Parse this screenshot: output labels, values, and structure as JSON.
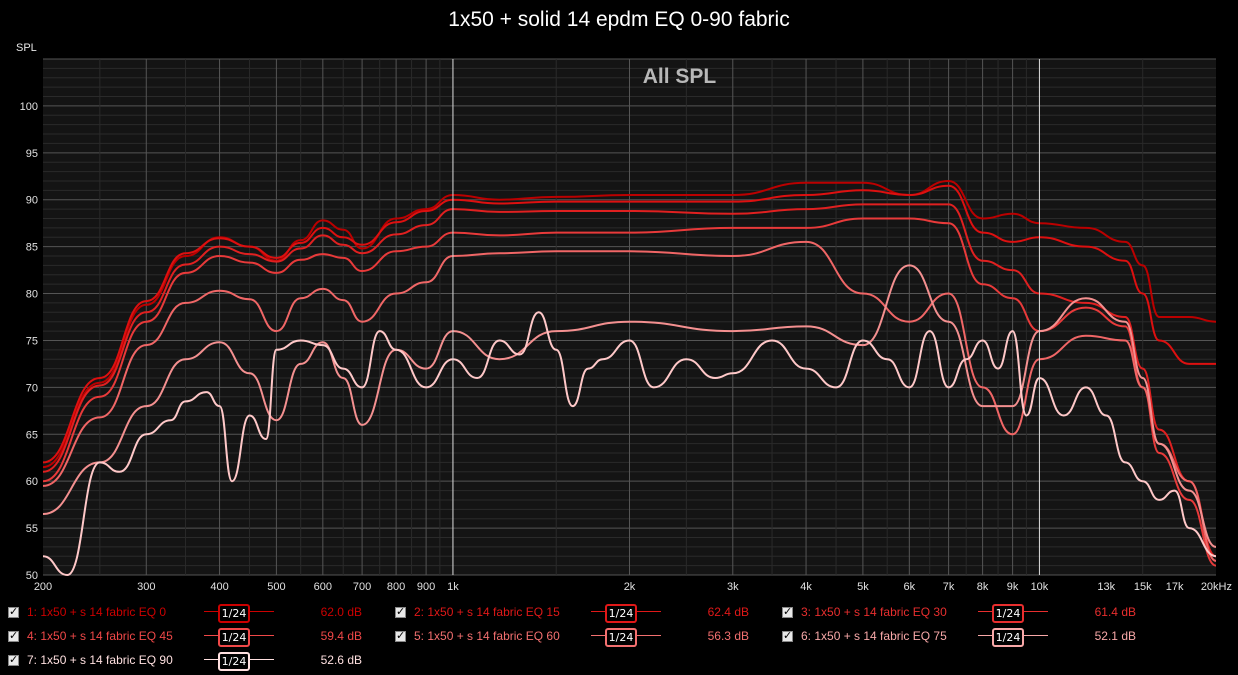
{
  "title": "1x50 + solid 14 epdm EQ 0-90 fabric",
  "watermark": "All SPL",
  "ylabel": "SPL",
  "chart_data": {
    "type": "line",
    "title": "1x50 + solid 14 epdm EQ 0-90 fabric",
    "subtitle": "All SPL",
    "xscale": "log",
    "xlim": [
      200,
      20000
    ],
    "ylim": [
      50,
      105
    ],
    "xlabel": "",
    "ylabel": "SPL",
    "x_ticks": [
      {
        "v": 200,
        "t": "200"
      },
      {
        "v": 300,
        "t": "300"
      },
      {
        "v": 400,
        "t": "400"
      },
      {
        "v": 500,
        "t": "500"
      },
      {
        "v": 600,
        "t": "600"
      },
      {
        "v": 700,
        "t": "700"
      },
      {
        "v": 800,
        "t": "800"
      },
      {
        "v": 900,
        "t": "900"
      },
      {
        "v": 1000,
        "t": "1k"
      },
      {
        "v": 2000,
        "t": "2k"
      },
      {
        "v": 3000,
        "t": "3k"
      },
      {
        "v": 4000,
        "t": "4k"
      },
      {
        "v": 5000,
        "t": "5k"
      },
      {
        "v": 6000,
        "t": "6k"
      },
      {
        "v": 7000,
        "t": "7k"
      },
      {
        "v": 8000,
        "t": "8k"
      },
      {
        "v": 9000,
        "t": "9k"
      },
      {
        "v": 10000,
        "t": "10k"
      },
      {
        "v": 13000,
        "t": "13k"
      },
      {
        "v": 15000,
        "t": "15k"
      },
      {
        "v": 17000,
        "t": "17k"
      },
      {
        "v": 20000,
        "t": "20kHz"
      }
    ],
    "y_ticks": [
      50,
      55,
      60,
      65,
      70,
      75,
      80,
      85,
      90,
      95,
      100
    ],
    "grid": true,
    "series": [
      {
        "name": "1: 1x50 + s 14 fabric EQ 0",
        "color": "#bb0000",
        "level": "62.0 dB",
        "x": [
          200,
          250,
          300,
          350,
          400,
          450,
          500,
          550,
          600,
          650,
          700,
          800,
          900,
          1000,
          1200,
          1500,
          2000,
          3000,
          4000,
          5000,
          6000,
          7000,
          8000,
          9000,
          10000,
          12000,
          14000,
          15000,
          16000,
          18000,
          20000
        ],
        "y": [
          61.5,
          70.5,
          78.8,
          84.0,
          86.0,
          85.0,
          83.5,
          85.7,
          87.8,
          86.8,
          84.8,
          88.0,
          89.0,
          90.5,
          90.0,
          90.3,
          90.5,
          90.5,
          91.8,
          91.8,
          90.5,
          92.0,
          88.0,
          88.5,
          87.5,
          87.0,
          85.5,
          83.0,
          77.5,
          77.5,
          77.0
        ]
      },
      {
        "name": "2: 1x50 + s 14 fabric EQ 15",
        "color": "#dd1010",
        "level": "62.4 dB",
        "x": [
          200,
          250,
          300,
          350,
          400,
          450,
          500,
          550,
          600,
          650,
          700,
          800,
          900,
          1000,
          1200,
          1500,
          2000,
          3000,
          4000,
          5000,
          6000,
          7000,
          8000,
          9000,
          10000,
          12000,
          14000,
          15000,
          16000,
          18000,
          20000
        ],
        "y": [
          62.0,
          71.0,
          79.2,
          84.3,
          85.9,
          85.0,
          83.8,
          85.4,
          87.0,
          86.0,
          85.2,
          87.6,
          88.8,
          90.0,
          89.6,
          89.8,
          89.8,
          89.8,
          90.5,
          91.0,
          90.5,
          91.5,
          86.5,
          85.5,
          86.0,
          85.0,
          83.5,
          80.0,
          75.0,
          72.5,
          72.5
        ]
      },
      {
        "name": "3: 1x50 + s 14 fabric EQ 30",
        "color": "#e02020",
        "level": "61.4 dB",
        "x": [
          200,
          250,
          300,
          350,
          400,
          450,
          500,
          550,
          600,
          650,
          700,
          800,
          900,
          1000,
          1200,
          1500,
          2000,
          3000,
          4000,
          5000,
          6000,
          7000,
          8000,
          9000,
          10000,
          12000,
          14000,
          15000,
          16000,
          18000,
          20000
        ],
        "y": [
          61.0,
          70.2,
          78.0,
          83.1,
          85.0,
          84.2,
          83.4,
          84.8,
          86.2,
          85.2,
          84.3,
          86.3,
          87.3,
          89.0,
          88.7,
          88.8,
          88.8,
          88.5,
          89.0,
          89.5,
          89.5,
          89.5,
          83.5,
          82.5,
          80.0,
          79.0,
          77.5,
          72.0,
          65.5,
          60.0,
          52.0
        ]
      },
      {
        "name": "4: 1x50 + s 14 fabric EQ 45",
        "color": "#e83a3a",
        "level": "59.4 dB",
        "x": [
          200,
          250,
          300,
          350,
          400,
          450,
          500,
          550,
          600,
          650,
          700,
          800,
          900,
          1000,
          1200,
          1500,
          2000,
          3000,
          4000,
          5000,
          6000,
          7000,
          8000,
          9000,
          10000,
          12000,
          14000,
          15000,
          16000,
          18000,
          20000
        ],
        "y": [
          60.0,
          69.0,
          77.0,
          82.2,
          84.0,
          83.3,
          82.2,
          83.6,
          84.2,
          83.8,
          82.4,
          84.5,
          85.0,
          86.5,
          86.2,
          86.5,
          86.5,
          87.0,
          87.0,
          88.0,
          88.0,
          87.5,
          81.0,
          79.5,
          76.0,
          78.5,
          76.5,
          70.0,
          63.0,
          58.0,
          51.0
        ]
      },
      {
        "name": "5: 1x50 + s 14 fabric EQ 60",
        "color": "#f06666",
        "level": "56.3 dB",
        "x": [
          200,
          250,
          300,
          350,
          400,
          450,
          500,
          550,
          600,
          650,
          700,
          800,
          900,
          1000,
          1200,
          1500,
          2000,
          3000,
          4000,
          5000,
          6000,
          7000,
          8000,
          9000,
          10000,
          12000,
          14000,
          15000,
          16000,
          18000,
          20000
        ],
        "y": [
          59.5,
          66.8,
          74.5,
          79.0,
          80.3,
          79.4,
          76.0,
          79.5,
          80.5,
          79.3,
          77.0,
          80.0,
          81.2,
          84.0,
          84.3,
          84.5,
          84.5,
          84.0,
          85.5,
          80.0,
          77.0,
          80.0,
          70.0,
          65.0,
          73.0,
          75.5,
          75.0,
          70.0,
          64.0,
          60.0,
          51.5
        ]
      },
      {
        "name": "6: 1x50 + s 14 fabric EQ 75",
        "color": "#f49090",
        "level": "52.1 dB",
        "x": [
          200,
          250,
          300,
          350,
          400,
          450,
          500,
          550,
          600,
          650,
          700,
          800,
          900,
          1000,
          1200,
          1500,
          2000,
          3000,
          4000,
          5000,
          6000,
          7000,
          8000,
          9000,
          10000,
          12000,
          14000,
          15000,
          16000,
          18000,
          20000
        ],
        "y": [
          56.5,
          62.0,
          68.0,
          73.0,
          74.8,
          71.5,
          66.5,
          72.5,
          74.8,
          71.0,
          66.0,
          74.0,
          72.0,
          76.0,
          73.0,
          76.0,
          77.0,
          76.0,
          76.5,
          74.5,
          83.0,
          77.0,
          68.0,
          68.0,
          76.0,
          79.5,
          77.0,
          71.0,
          64.0,
          59.0,
          53.0
        ]
      },
      {
        "name": "7: 1x50 + s 14 fabric EQ 90",
        "color": "#ffc8c8",
        "level": "52.6 dB",
        "x": [
          200,
          220,
          250,
          270,
          300,
          330,
          350,
          380,
          400,
          420,
          450,
          480,
          500,
          550,
          600,
          650,
          700,
          750,
          800,
          900,
          1000,
          1100,
          1200,
          1300,
          1400,
          1500,
          1600,
          1700,
          1800,
          2000,
          2200,
          2500,
          2800,
          3000,
          3500,
          4000,
          4500,
          5000,
          5500,
          6000,
          6500,
          7000,
          7500,
          8000,
          8500,
          9000,
          9500,
          10000,
          11000,
          12000,
          13000,
          14000,
          15000,
          16000,
          17000,
          18000,
          20000
        ],
        "y": [
          52.0,
          50.0,
          62.0,
          61.0,
          65.0,
          66.5,
          68.5,
          69.5,
          68.0,
          60.0,
          67.0,
          64.5,
          74.0,
          75.0,
          74.5,
          72.0,
          70.0,
          76.0,
          74.0,
          70.0,
          73.0,
          71.0,
          75.0,
          73.5,
          78.0,
          74.0,
          68.0,
          72.0,
          73.0,
          75.0,
          70.0,
          73.0,
          71.0,
          71.5,
          75.0,
          72.0,
          70.0,
          75.0,
          73.0,
          70.0,
          76.0,
          70.0,
          73.0,
          75.0,
          72.0,
          76.0,
          67.0,
          71.0,
          67.0,
          70.0,
          67.0,
          62.0,
          60.0,
          58.0,
          59.0,
          55.0,
          52.0
        ]
      }
    ]
  },
  "legend": [
    {
      "label": "1: 1x50 + s 14 fabric EQ 0",
      "smoothing": "1/24",
      "level": "62.0 dB",
      "color": "#cc0000"
    },
    {
      "label": "2: 1x50 + s 14 fabric EQ 15",
      "smoothing": "1/24",
      "level": "62.4 dB",
      "color": "#e01818"
    },
    {
      "label": "3: 1x50 + s 14 fabric EQ 30",
      "smoothing": "1/24",
      "level": "61.4 dB",
      "color": "#e82e2e"
    },
    {
      "label": "4: 1x50 + s 14 fabric EQ 45",
      "smoothing": "1/24",
      "level": "59.4 dB",
      "color": "#f04848"
    },
    {
      "label": "5: 1x50 + s 14 fabric EQ 60",
      "smoothing": "1/24",
      "level": "56.3 dB",
      "color": "#f37070"
    },
    {
      "label": "6: 1x50 + s 14 fabric EQ 75",
      "smoothing": "1/24",
      "level": "52.1 dB",
      "color": "#f8a8a8"
    },
    {
      "label": "7: 1x50 + s 14 fabric EQ 90",
      "smoothing": "1/24",
      "level": "52.6 dB",
      "color": "#ffe0e0"
    }
  ],
  "colors": {
    "background": "#000000",
    "plot_bg": "#141414",
    "grid_major": "#555555",
    "grid_minor": "#2a2a2a",
    "marker_line": "#d8d8d8"
  }
}
